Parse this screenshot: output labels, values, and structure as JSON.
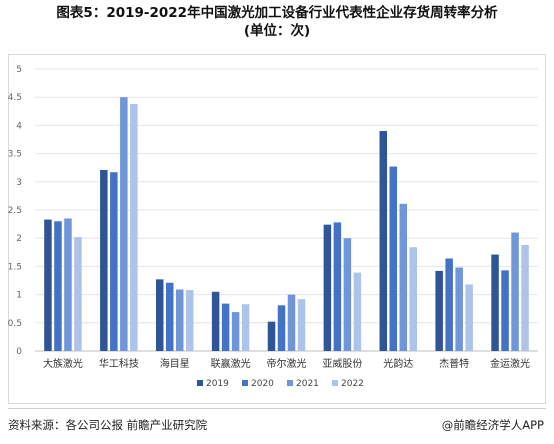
{
  "title": "图表5：2019-2022年中国激光加工设备行业代表性企业存货周转率分析",
  "subtitle": "(单位：次)",
  "source": "资料来源：各公司公报 前瞻产业研究院",
  "brand": "@前瞻经济学人APP",
  "chart_data": {
    "type": "bar",
    "title": "图表5：2019-2022年中国激光加工设备行业代表性企业存货周转率分析",
    "subtitle": "(单位：次)",
    "categories": [
      "大族激光",
      "华工科技",
      "海目星",
      "联赢激光",
      "帝尔激光",
      "亚威股份",
      "光韵达",
      "杰普特",
      "金运激光"
    ],
    "series": [
      {
        "name": "2019",
        "color": "#2f5597",
        "values": [
          2.33,
          3.21,
          1.27,
          1.05,
          0.52,
          2.24,
          3.9,
          1.42,
          1.71
        ]
      },
      {
        "name": "2020",
        "color": "#4472c4",
        "values": [
          2.3,
          3.17,
          1.21,
          0.84,
          0.81,
          2.28,
          3.27,
          1.64,
          1.43
        ]
      },
      {
        "name": "2021",
        "color": "#6f96d8",
        "values": [
          2.35,
          4.5,
          1.09,
          0.69,
          1.0,
          2.0,
          2.61,
          1.48,
          2.1
        ]
      },
      {
        "name": "2022",
        "color": "#aec3ea",
        "values": [
          2.02,
          4.38,
          1.08,
          0.83,
          0.92,
          1.39,
          1.84,
          1.18,
          1.88
        ]
      }
    ],
    "yticks": [
      "0",
      "0.5",
      "1",
      "1.5",
      "2",
      "2.5",
      "3",
      "3.5",
      "4",
      "4.5",
      "5"
    ],
    "ylim": [
      0,
      5
    ],
    "grid": true,
    "legend_position": "bottom"
  }
}
